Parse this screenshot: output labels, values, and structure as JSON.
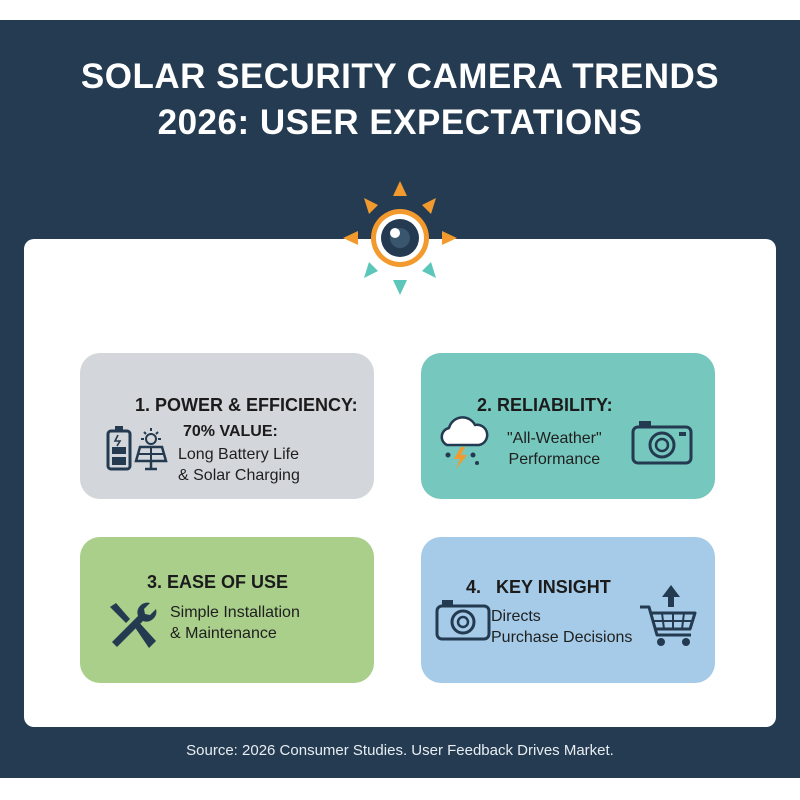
{
  "header": {
    "title_line1": "SOLAR SECURITY CAMERA TRENDS",
    "title_line2": "2026: USER EXPECTATIONS"
  },
  "colors": {
    "background": "#243b51",
    "orange": "#f29a2e",
    "teal": "#5cc6bb",
    "box_gray": "#d3d6da",
    "box_teal": "#76c7bd",
    "box_green": "#a9cf8b",
    "box_blue": "#a5cbe8",
    "icon_dark": "#233a50"
  },
  "boxes": [
    {
      "heading": "1. POWER & EFFICIENCY:",
      "subheading": "70% VALUE:",
      "line1": "Long Battery Life",
      "line2": "& Solar Charging",
      "icons": [
        "battery-icon",
        "solar-panel-icon"
      ]
    },
    {
      "heading": "2. RELIABILITY:",
      "line1": "\"All-Weather\"",
      "line2": "Performance",
      "icons": [
        "storm-cloud-icon",
        "camera-icon"
      ]
    },
    {
      "heading": "3. EASE OF USE",
      "line1": "Simple Installation",
      "line2": "& Maintenance",
      "icons": [
        "tools-icon"
      ]
    },
    {
      "heading": "4.   KEY INSIGHT",
      "line1": "Directs",
      "line2": "Purchase Decisions",
      "icons": [
        "camera-icon",
        "shopping-cart-icon"
      ]
    }
  ],
  "footer": {
    "source": "Source: 2026 Consumer Studies. User Feedback Drives Market."
  }
}
